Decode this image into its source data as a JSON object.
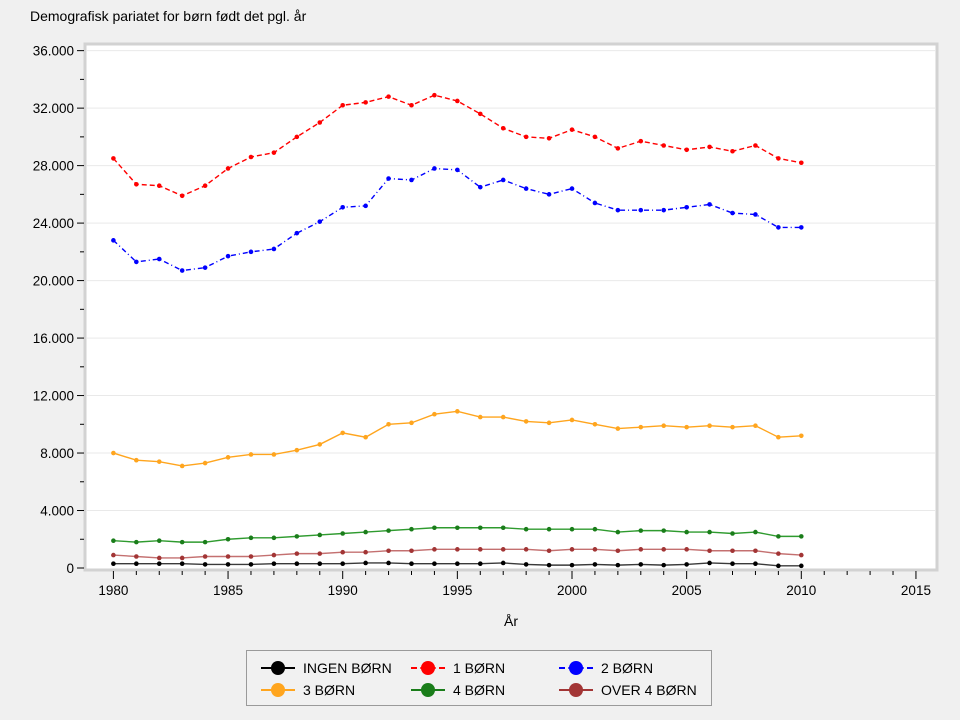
{
  "page": {
    "background_color": "#f0f0f0",
    "plot_background_color": "#ffffff",
    "plot_border_color": "#d2d2d2",
    "gridline_color": "#e9e9e9"
  },
  "chart_data": {
    "type": "line",
    "title": "Demografisk pariatet for børn født det pgl. år",
    "xlabel": "År",
    "ylabel": "",
    "grid": "horizontal-major",
    "legend_position": "bottom-center",
    "x_axis": {
      "min": 1980,
      "max": 2015,
      "major_step": 5,
      "minor_step": 1,
      "tick_labels": [
        "1980",
        "1985",
        "1990",
        "1995",
        "2000",
        "2005",
        "2010",
        "2015"
      ]
    },
    "y_axis": {
      "min": 0,
      "max": 36000,
      "major_step": 4000,
      "minor_step": 2000,
      "tick_labels": [
        "0",
        "4.000",
        "8.000",
        "12.000",
        "16.000",
        "20.000",
        "24.000",
        "28.000",
        "32.000",
        "36.000"
      ]
    },
    "x": [
      1980,
      1981,
      1982,
      1983,
      1984,
      1985,
      1986,
      1987,
      1988,
      1989,
      1990,
      1991,
      1992,
      1993,
      1994,
      1995,
      1996,
      1997,
      1998,
      1999,
      2000,
      2001,
      2002,
      2003,
      2004,
      2005,
      2006,
      2007,
      2008,
      2009,
      2010
    ],
    "series": [
      {
        "name": "INGEN BØRN",
        "color": "#000000",
        "line_color": "#3a3a3a",
        "dash": "solid",
        "values": [
          300,
          300,
          300,
          300,
          250,
          250,
          250,
          300,
          300,
          300,
          300,
          350,
          350,
          300,
          300,
          300,
          300,
          350,
          250,
          200,
          200,
          250,
          200,
          250,
          200,
          250,
          350,
          300,
          300,
          150,
          150
        ]
      },
      {
        "name": "1 BØRN",
        "color": "#ff0000",
        "line_color": "#ff0000",
        "dash": "dashed",
        "values": [
          28500,
          26700,
          26600,
          25900,
          26600,
          27800,
          28600,
          28900,
          30000,
          31000,
          32200,
          32400,
          32800,
          32200,
          32900,
          32500,
          31600,
          30600,
          30000,
          29900,
          30500,
          30000,
          29200,
          29700,
          29400,
          29100,
          29300,
          29000,
          29400,
          28500,
          28200
        ]
      },
      {
        "name": "2 BØRN",
        "color": "#0000ff",
        "line_color": "#0000ff",
        "dash": "dashdot",
        "values": [
          22800,
          21300,
          21500,
          20700,
          20900,
          21700,
          22000,
          22200,
          23300,
          24100,
          25100,
          25200,
          27100,
          27000,
          27800,
          27700,
          26500,
          27000,
          26400,
          26000,
          26400,
          25400,
          24900,
          24900,
          24900,
          25100,
          25300,
          24700,
          24600,
          23700,
          23700
        ]
      },
      {
        "name": "3 BØRN",
        "color": "#ffa51e",
        "line_color": "#ffa51e",
        "dash": "solid",
        "values": [
          8000,
          7500,
          7400,
          7100,
          7300,
          7700,
          7900,
          7900,
          8200,
          8600,
          9400,
          9100,
          10000,
          10100,
          10700,
          10900,
          10500,
          10500,
          10200,
          10100,
          10300,
          10000,
          9700,
          9800,
          9900,
          9800,
          9900,
          9800,
          9900,
          9100,
          9200
        ]
      },
      {
        "name": "4 BØRN",
        "color": "#1a7d1a",
        "line_color": "#2f9b2f",
        "dash": "solid",
        "values": [
          1900,
          1800,
          1900,
          1800,
          1800,
          2000,
          2100,
          2100,
          2200,
          2300,
          2400,
          2500,
          2600,
          2700,
          2800,
          2800,
          2800,
          2800,
          2700,
          2700,
          2700,
          2700,
          2500,
          2600,
          2600,
          2500,
          2500,
          2400,
          2500,
          2200,
          2200
        ]
      },
      {
        "name": "OVER 4 BØRN",
        "color": "#a23535",
        "line_color": "#c47070",
        "dash": "solid",
        "values": [
          900,
          800,
          700,
          700,
          800,
          800,
          800,
          900,
          1000,
          1000,
          1100,
          1100,
          1200,
          1200,
          1300,
          1300,
          1300,
          1300,
          1300,
          1200,
          1300,
          1300,
          1200,
          1300,
          1300,
          1300,
          1200,
          1200,
          1200,
          1000,
          900
        ]
      }
    ]
  }
}
